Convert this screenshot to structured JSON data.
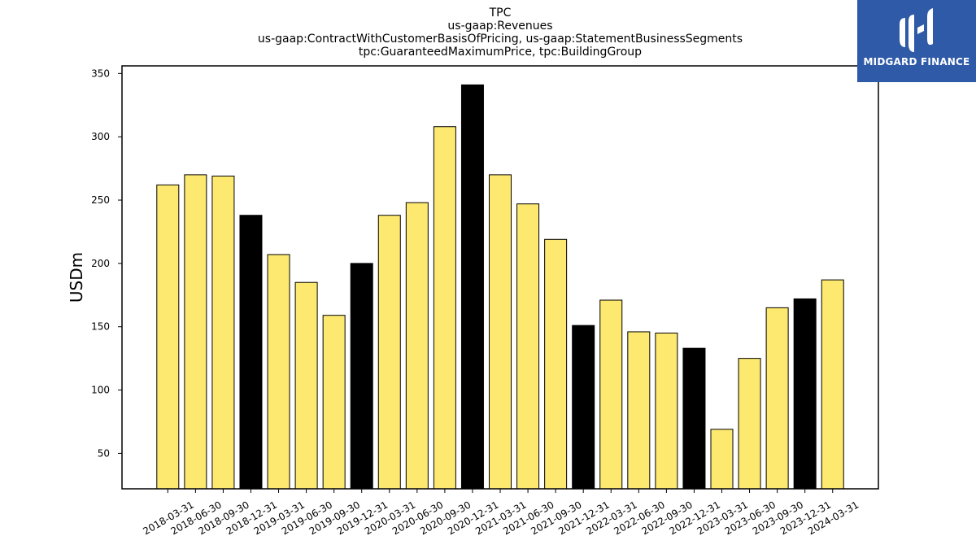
{
  "chart_data": {
    "type": "bar",
    "title_lines": [
      "TPC",
      "us-gaap:Revenues",
      "us-gaap:ContractWithCustomerBasisOfPricing, us-gaap:StatementBusinessSegments",
      "tpc:GuaranteedMaximumPrice, tpc:BuildingGroup"
    ],
    "xlabel": "",
    "ylabel": "USDm",
    "ylim": [
      22,
      356
    ],
    "yticks": [
      50,
      100,
      150,
      200,
      250,
      300,
      350
    ],
    "categories": [
      "2018-03-31",
      "2018-06-30",
      "2018-09-30",
      "2018-12-31",
      "2019-03-31",
      "2019-06-30",
      "2019-09-30",
      "2019-12-31",
      "2020-03-31",
      "2020-06-30",
      "2020-09-30",
      "2020-12-31",
      "2021-03-31",
      "2021-06-30",
      "2021-09-30",
      "2021-12-31",
      "2022-03-31",
      "2022-06-30",
      "2022-09-30",
      "2022-12-31",
      "2023-03-31",
      "2023-06-30",
      "2023-09-30",
      "2023-12-31",
      "2024-03-31"
    ],
    "values": [
      262,
      270,
      269,
      238,
      207,
      185,
      159,
      200,
      238,
      248,
      308,
      341,
      270,
      247,
      219,
      151,
      171,
      146,
      145,
      133,
      69,
      125,
      165,
      172,
      187
    ],
    "bar_colors": [
      "#fde96f",
      "#fde96f",
      "#fde96f",
      "#000000",
      "#fde96f",
      "#fde96f",
      "#fde96f",
      "#000000",
      "#fde96f",
      "#fde96f",
      "#fde96f",
      "#000000",
      "#fde96f",
      "#fde96f",
      "#fde96f",
      "#000000",
      "#fde96f",
      "#fde96f",
      "#fde96f",
      "#000000",
      "#fde96f",
      "#fde96f",
      "#fde96f",
      "#000000",
      "#fde96f"
    ],
    "grid": false,
    "legend": "none"
  },
  "watermark": {
    "text": "MIDGARD FINANCE",
    "background": "#2f5aa8",
    "icon": "midgard-logo-icon"
  }
}
